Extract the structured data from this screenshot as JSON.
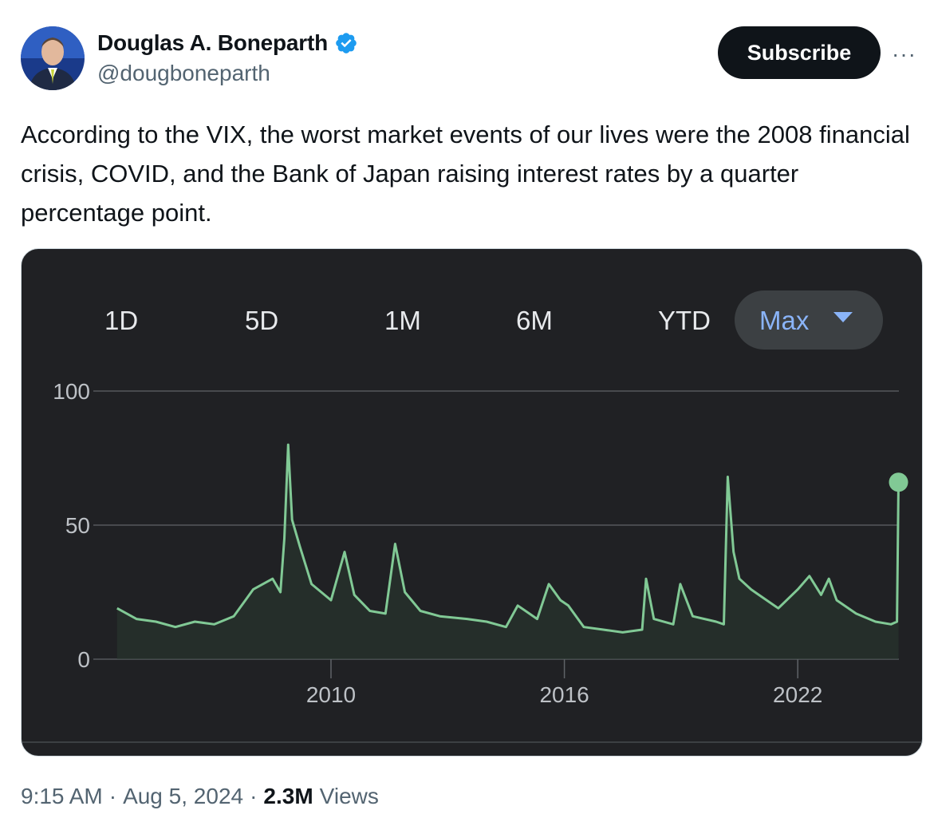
{
  "tweet": {
    "author_name": "Douglas A. Boneparth",
    "handle": "@dougboneparth",
    "subscribe_label": "Subscribe",
    "more_label": "···",
    "text": "According to the VIX, the worst market events of our lives were the 2008 financial crisis, COVID, and the Bank of Japan raising interest rates by a quarter percentage point.",
    "time": "9:15 AM",
    "date": "Aug 5, 2024",
    "views_count": "2.3M",
    "views_label": "Views",
    "separator": "·"
  },
  "colors": {
    "verified": "#1d9bf0",
    "line": "#81c995",
    "chart_bg": "#202124",
    "accent_blue": "#8ab4f8"
  },
  "icons": {
    "verified": "verified-badge-icon",
    "menu": "more-horizontal-icon",
    "dropdown": "caret-down-icon"
  },
  "chart_data": {
    "type": "line",
    "range_tabs": [
      "1D",
      "5D",
      "1M",
      "6M",
      "YTD"
    ],
    "selected_range": "Max",
    "y_ticks": [
      "100",
      "50",
      "0"
    ],
    "x_ticks": [
      "2010",
      "2016",
      "2022"
    ],
    "ylim": [
      0,
      100
    ],
    "xlim": [
      2004.3,
      2024.6
    ],
    "grid": true,
    "last_point_marker": true,
    "series": [
      {
        "x": [
          2004.5,
          2005.0,
          2005.5,
          2006.0,
          2006.5,
          2007.0,
          2007.5,
          2007.8,
          2008.0,
          2008.5,
          2008.7,
          2008.8,
          2008.9,
          2009.0,
          2009.2,
          2009.5,
          2010.0,
          2010.35,
          2010.6,
          2011.0,
          2011.4,
          2011.65,
          2011.9,
          2012.3,
          2012.8,
          2013.5,
          2014.0,
          2014.5,
          2014.8,
          2015.3,
          2015.6,
          2015.9,
          2016.1,
          2016.5,
          2017.0,
          2017.5,
          2018.0,
          2018.1,
          2018.3,
          2018.8,
          2018.98,
          2019.3,
          2019.9,
          2020.1,
          2020.2,
          2020.35,
          2020.5,
          2020.8,
          2021.0,
          2021.5,
          2022.0,
          2022.3,
          2022.6,
          2022.8,
          2023.0,
          2023.5,
          2024.0,
          2024.4,
          2024.55,
          2024.59
        ],
        "y": [
          19,
          15,
          14,
          12,
          14,
          13,
          16,
          22,
          26,
          30,
          25,
          45,
          80,
          52,
          42,
          28,
          22,
          40,
          24,
          18,
          17,
          43,
          25,
          18,
          16,
          15,
          14,
          12,
          20,
          15,
          28,
          22,
          20,
          12,
          11,
          10,
          11,
          30,
          15,
          13,
          28,
          16,
          14,
          13,
          68,
          40,
          30,
          26,
          24,
          19,
          26,
          31,
          24,
          30,
          22,
          17,
          14,
          13,
          14,
          66
        ]
      }
    ]
  }
}
